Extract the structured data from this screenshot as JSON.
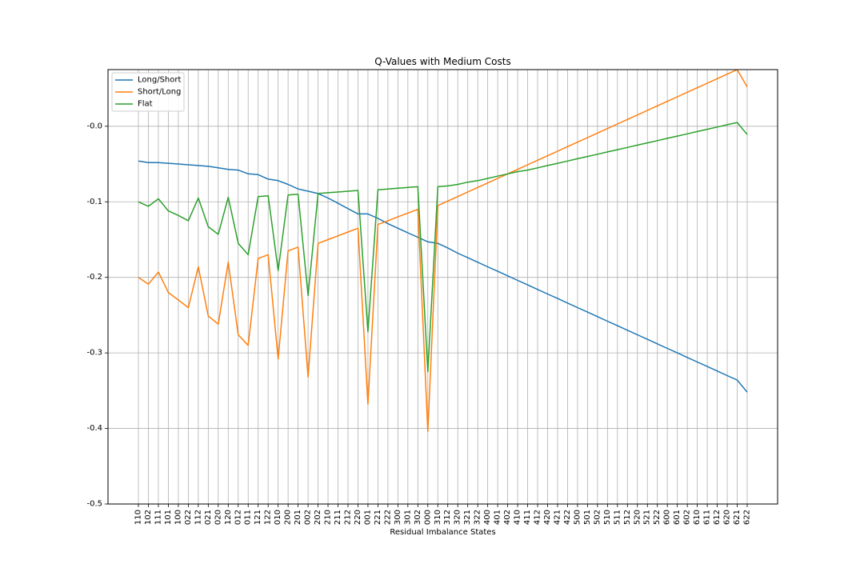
{
  "chart_data": {
    "type": "line",
    "title": "Q-Values with Medium Costs",
    "xlabel": "Residual Imbalance States",
    "ylabel": "",
    "ylim": [
      -0.5,
      0.075
    ],
    "yticks": [
      -0.5,
      -0.4,
      -0.3,
      -0.2,
      -0.1,
      -0.0
    ],
    "ytick_labels": [
      "-0.5",
      "-0.4",
      "-0.3",
      "-0.2",
      "-0.1",
      "-0.0"
    ],
    "grid": true,
    "legend_position": "top-left",
    "categories": [
      "110",
      "102",
      "111",
      "101",
      "100",
      "022",
      "112",
      "021",
      "020",
      "120",
      "012",
      "011",
      "121",
      "122",
      "010",
      "200",
      "201",
      "002",
      "202",
      "210",
      "211",
      "212",
      "220",
      "001",
      "221",
      "222",
      "300",
      "301",
      "302",
      "000",
      "310",
      "312",
      "320",
      "321",
      "322",
      "400",
      "401",
      "402",
      "410",
      "411",
      "412",
      "420",
      "421",
      "422",
      "500",
      "501",
      "502",
      "510",
      "511",
      "512",
      "520",
      "521",
      "522",
      "600",
      "601",
      "602",
      "610",
      "611",
      "612",
      "620",
      "621",
      "622"
    ],
    "series": [
      {
        "name": "Long/Short",
        "color": "#1f77b4",
        "values": [
          -0.046,
          -0.048,
          -0.048,
          -0.049,
          -0.05,
          -0.051,
          -0.052,
          -0.053,
          -0.055,
          -0.057,
          -0.058,
          -0.063,
          -0.064,
          -0.07,
          -0.072,
          -0.077,
          -0.083,
          -0.086,
          -0.089,
          -0.095,
          -0.102,
          -0.109,
          -0.116,
          -0.116,
          -0.122,
          -0.129,
          -0.135,
          -0.141,
          -0.147,
          -0.153,
          -0.155,
          -0.161,
          -0.168,
          -0.174,
          -0.18,
          -0.186,
          -0.192,
          -0.198,
          -0.204,
          -0.21,
          -0.216,
          -0.222,
          -0.228,
          -0.234,
          -0.24,
          -0.246,
          -0.252,
          -0.258,
          -0.264,
          -0.27,
          -0.276,
          -0.282,
          -0.288,
          -0.294,
          -0.3,
          -0.306,
          -0.312,
          -0.318,
          -0.324,
          -0.33,
          -0.336,
          -0.352
        ]
      },
      {
        "name": "Short/Long",
        "color": "#ff7f0e",
        "values": [
          -0.2,
          -0.209,
          -0.193,
          -0.22,
          -0.23,
          -0.24,
          -0.186,
          -0.251,
          -0.262,
          -0.18,
          -0.276,
          -0.29,
          -0.175,
          -0.17,
          -0.308,
          -0.165,
          -0.16,
          -0.332,
          -0.155,
          -0.15,
          -0.145,
          -0.14,
          -0.135,
          -0.368,
          -0.13,
          -0.125,
          -0.12,
          -0.115,
          -0.11,
          -0.404,
          -0.105,
          -0.099,
          -0.093,
          -0.087,
          -0.081,
          -0.075,
          -0.069,
          -0.063,
          -0.057,
          -0.051,
          -0.045,
          -0.039,
          -0.033,
          -0.027,
          -0.021,
          -0.015,
          -0.009,
          -0.003,
          0.003,
          0.009,
          0.015,
          0.021,
          0.027,
          0.033,
          0.039,
          0.045,
          0.051,
          0.057,
          0.063,
          0.069,
          0.075,
          0.052
        ]
      },
      {
        "name": "Flat",
        "color": "#2ca02c",
        "values": [
          -0.1,
          -0.106,
          -0.096,
          -0.112,
          -0.118,
          -0.125,
          -0.095,
          -0.133,
          -0.143,
          -0.094,
          -0.155,
          -0.17,
          -0.093,
          -0.092,
          -0.191,
          -0.091,
          -0.09,
          -0.224,
          -0.089,
          -0.088,
          -0.087,
          -0.086,
          -0.085,
          -0.272,
          -0.084,
          -0.083,
          -0.082,
          -0.081,
          -0.08,
          -0.325,
          -0.08,
          -0.079,
          -0.077,
          -0.074,
          -0.072,
          -0.069,
          -0.066,
          -0.063,
          -0.06,
          -0.058,
          -0.055,
          -0.052,
          -0.049,
          -0.046,
          -0.043,
          -0.04,
          -0.037,
          -0.034,
          -0.031,
          -0.028,
          -0.025,
          -0.022,
          -0.019,
          -0.016,
          -0.013,
          -0.01,
          -0.007,
          -0.004,
          -0.001,
          0.002,
          0.005,
          -0.011
        ]
      }
    ]
  }
}
